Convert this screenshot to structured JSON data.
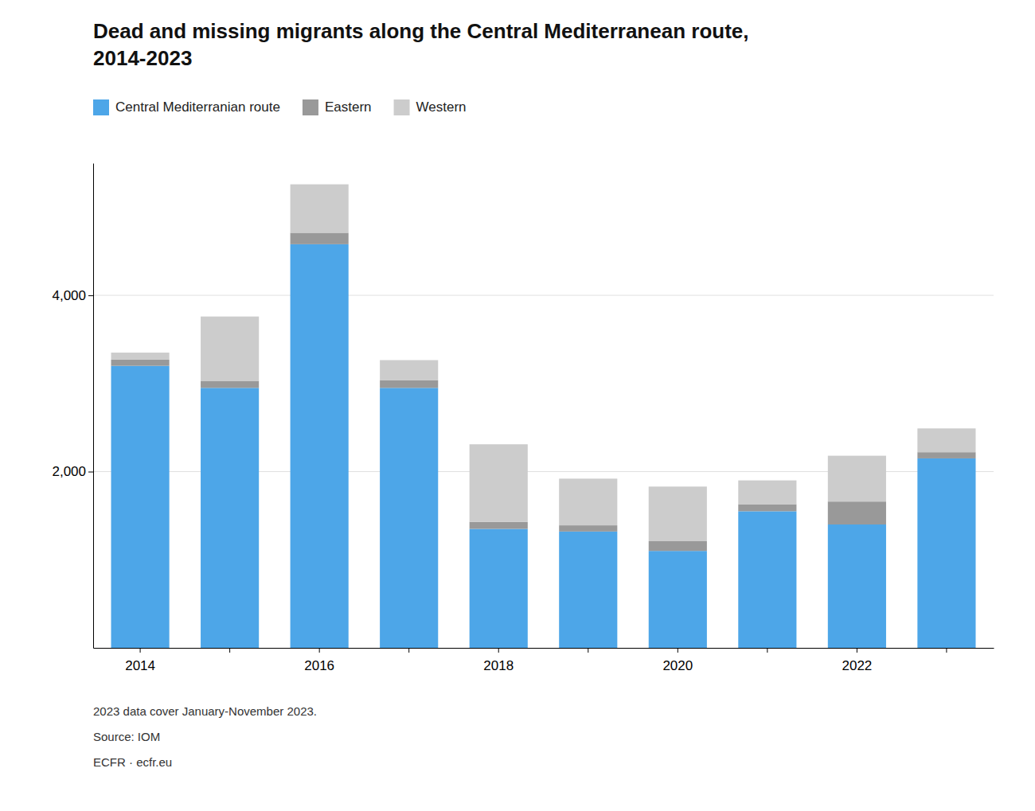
{
  "chart_data": {
    "type": "bar",
    "title": [
      "Dead and missing migrants along the Central Mediterranean route,",
      "2014-2023"
    ],
    "categories": [
      "2014",
      null,
      "2016",
      null,
      "2018",
      null,
      "2020",
      null,
      "2022",
      null
    ],
    "series": [
      {
        "name": "Central Mediterranian route",
        "color": "#4da6e8",
        "values": [
          3200,
          2950,
          4580,
          2950,
          1350,
          1320,
          1100,
          1550,
          1400,
          2150
        ]
      },
      {
        "name": "Eastern",
        "color": "#999999",
        "values": [
          70,
          80,
          130,
          85,
          80,
          70,
          110,
          80,
          260,
          70
        ]
      },
      {
        "name": "Western",
        "color": "#cccccc",
        "values": [
          80,
          730,
          550,
          230,
          880,
          530,
          620,
          270,
          520,
          270
        ]
      }
    ],
    "stacked": true,
    "ylim": [
      0,
      5500
    ],
    "yticks": [
      {
        "value": 2000,
        "label": "2,000"
      },
      {
        "value": 4000,
        "label": "4,000"
      }
    ],
    "grid": true,
    "legend": "top-left",
    "annotations": [
      "2023 data cover January-November 2023.",
      "Source: IOM",
      "ECFR · ecfr.eu"
    ]
  }
}
